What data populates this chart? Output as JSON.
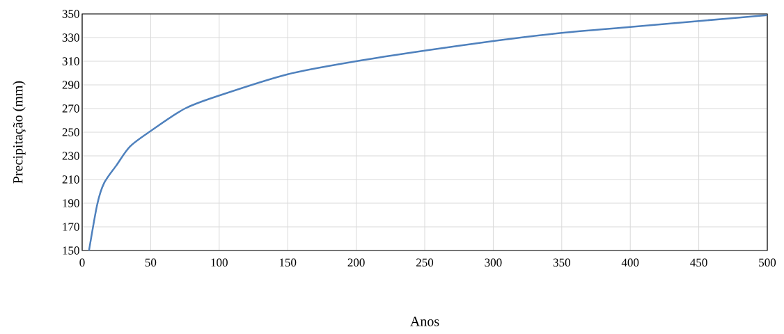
{
  "chart_data": {
    "type": "line",
    "xlabel": "Anos",
    "ylabel": "Precipitação (mm)",
    "x": [
      5,
      11,
      16,
      25,
      35,
      50,
      75,
      100,
      150,
      200,
      250,
      300,
      350,
      400,
      450,
      500
    ],
    "series": [
      {
        "color": "#4f81bd",
        "values": [
          150,
          189,
          207,
          222,
          238,
          251,
          270,
          281,
          299,
          310,
          319,
          327,
          334,
          339,
          344,
          349
        ]
      }
    ],
    "xlim": [
      0,
      500
    ],
    "xticks": [
      0,
      50,
      100,
      150,
      200,
      250,
      300,
      350,
      400,
      450,
      500
    ],
    "ylim": [
      150,
      350
    ],
    "yticks": [
      150,
      170,
      190,
      210,
      230,
      250,
      270,
      290,
      310,
      330,
      350
    ],
    "grid": true,
    "marker": "none",
    "line_style": "solid"
  }
}
